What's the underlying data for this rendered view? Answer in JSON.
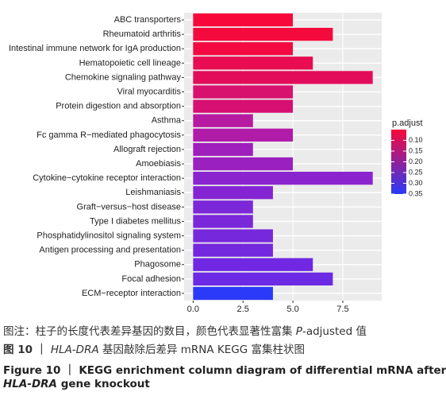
{
  "chart_data": {
    "type": "barh",
    "categories": [
      "ABC transporters",
      "Rheumatoid arthritis",
      "Intestinal immune network for IgA production",
      "Hematopoietic cell lineage",
      "Chemokine signaling pathway",
      "Viral myocarditis",
      "Protein digestion and absorption",
      "Asthma",
      "Fc gamma R−mediated phagocytosis",
      "Allograft rejection",
      "Amoebiasis",
      "Cytokine−cytokine receptor interaction",
      "Leishmaniasis",
      "Graft−versus−host disease",
      "Type I diabetes mellitus",
      "Phosphatidylinositol signaling system",
      "Antigen processing and presentation",
      "Phagosome",
      "Focal adhesion",
      "ECM−receptor interaction"
    ],
    "values": [
      5,
      7,
      5,
      6,
      9,
      5,
      5,
      3,
      5,
      3,
      5,
      9,
      4,
      3,
      3,
      4,
      4,
      6,
      7,
      4
    ],
    "colors": [
      "#f8083a",
      "#f50a3e",
      "#f20a40",
      "#e80c52",
      "#e20d5a",
      "#d8106e",
      "#d61072",
      "#b61aa0",
      "#b01ba8",
      "#9e1fbb",
      "#9a20c0",
      "#8a24cf",
      "#8424d2",
      "#7c27d8",
      "#7a28da",
      "#7628dc",
      "#7428de",
      "#7028e2",
      "#6c2ae4",
      "#2a3af8"
    ],
    "xlim": [
      -0.45,
      9.45
    ],
    "xticks": [
      {
        "value": 0,
        "label": "0.0"
      },
      2.5,
      {
        "value": 5,
        "label": "5.0"
      },
      7.5
    ],
    "grid": true,
    "legend": {
      "title": "p.adjust",
      "lim": [
        0.05,
        0.35
      ],
      "colors": [
        "#f8083a",
        "#2a3af8"
      ],
      "ticks": [
        {
          "value": 0.1,
          "label": "0.10"
        },
        0.15,
        {
          "value": 0.2,
          "label": "0.20"
        },
        0.25,
        {
          "value": 0.3,
          "label": "0.30"
        },
        0.35
      ]
    }
  },
  "caption": {
    "note": [
      "图注：柱子的长度代表差异基因的数目，颜色代表显著性富集 ",
      "P",
      "-adjusted 值"
    ],
    "zh": [
      "图 10 ｜ ",
      "HLA-DRA",
      " 基因敲除后差异 mRNA KEGG 富集柱状图"
    ],
    "en1": "Figure 10 ｜ KEGG enrichment column diagram of differential mRNA after",
    "en2": [
      "HLA-DRA",
      " gene knockout"
    ]
  }
}
